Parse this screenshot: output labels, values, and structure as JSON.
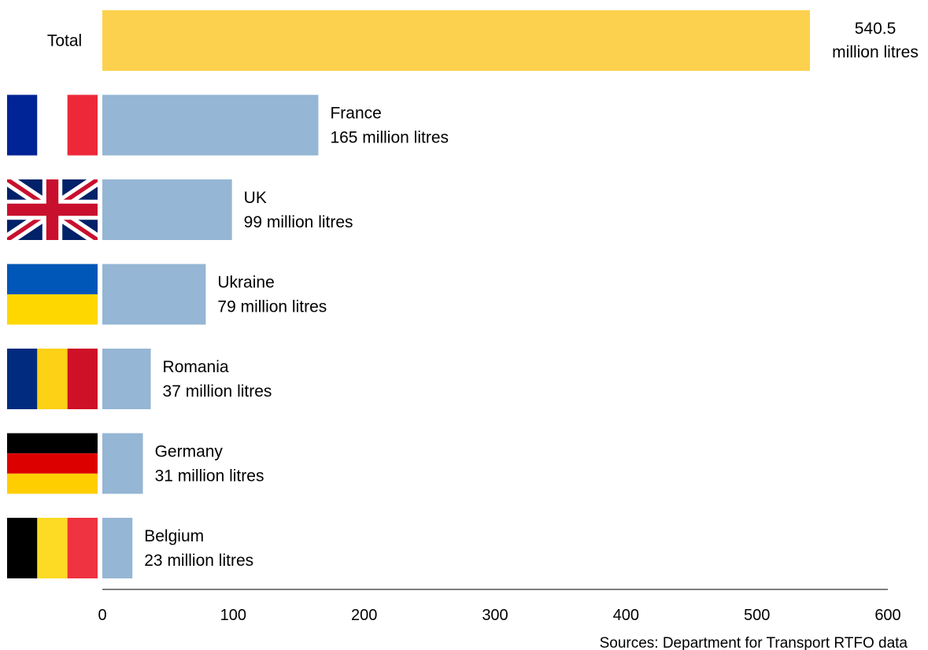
{
  "chart_data": {
    "type": "bar",
    "orientation": "horizontal",
    "title": "",
    "xlabel": "",
    "ylabel": "",
    "xlim": [
      0,
      600
    ],
    "x_ticks": [
      "0",
      "100",
      "200",
      "300",
      "400",
      "500",
      "600"
    ],
    "grid": false,
    "legend": "none",
    "bars": [
      {
        "category": "Total",
        "value": 540.5,
        "value_label": [
          "540.5",
          "million litres"
        ],
        "color": "#fcd14d",
        "flag": "none"
      },
      {
        "category": "France",
        "value": 165,
        "value_label": [
          "France",
          "165 million litres"
        ],
        "color": "#95b6d4",
        "flag": "france"
      },
      {
        "category": "UK",
        "value": 99,
        "value_label": [
          "UK",
          "99 million litres"
        ],
        "color": "#95b6d4",
        "flag": "uk"
      },
      {
        "category": "Ukraine",
        "value": 79,
        "value_label": [
          "Ukraine",
          "79 million litres"
        ],
        "color": "#95b6d4",
        "flag": "ukraine"
      },
      {
        "category": "Romania",
        "value": 37,
        "value_label": [
          "Romania",
          "37 million litres"
        ],
        "color": "#95b6d4",
        "flag": "romania"
      },
      {
        "category": "Germany",
        "value": 31,
        "value_label": [
          "Germany",
          "31 million litres"
        ],
        "color": "#95b6d4",
        "flag": "germany"
      },
      {
        "category": "Belgium",
        "value": 23,
        "value_label": [
          "Belgium",
          "23 million litres"
        ],
        "color": "#95b6d4",
        "flag": "belgium"
      }
    ],
    "source": "Sources: Department for Transport RTFO data"
  }
}
